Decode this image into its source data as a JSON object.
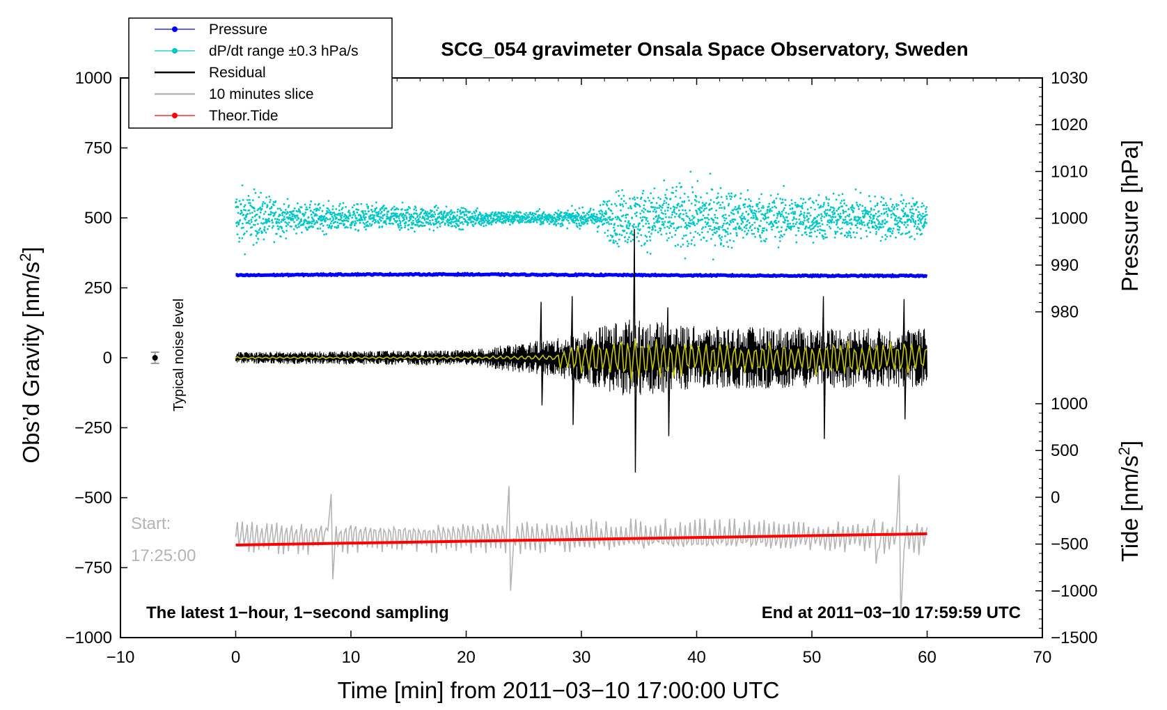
{
  "chart_data": {
    "type": "line",
    "title": "SCG_054 gravimeter Onsala Space Observatory, Sweden",
    "xlabel": "Time [min] from 2011−03−10 17:00:00 UTC",
    "ylabel_left": "Obs’d Gravity [nm/s",
    "ylabel_left_sup": "2",
    "ylabel_left_close": "]",
    "ylabel_right_top": "Pressure [hPa]",
    "ylabel_right_bottom": "Tide [nm/s",
    "ylabel_right_bottom_sup": "2",
    "ylabel_right_bottom_close": "]",
    "xlim": [
      -10,
      70
    ],
    "ylim_left": [
      -1000,
      1000
    ],
    "ylim_pressure": [
      970,
      1030
    ],
    "ylim_tide": [
      -1500,
      1000
    ],
    "x_ticks": [
      "−10",
      "0",
      "10",
      "20",
      "30",
      "40",
      "50",
      "60",
      "70"
    ],
    "x_tick_values": [
      -10,
      0,
      10,
      20,
      30,
      40,
      50,
      60,
      70
    ],
    "left_ticks": [
      "1000",
      "750",
      "500",
      "250",
      "0",
      "−250",
      "−500",
      "−750",
      "−1000"
    ],
    "left_tick_values": [
      1000,
      750,
      500,
      250,
      0,
      -250,
      -500,
      -750,
      -1000
    ],
    "pressure_ticks": [
      "1030",
      "1020",
      "1010",
      "1000",
      "990",
      "980"
    ],
    "pressure_tick_values": [
      1030,
      1020,
      1010,
      1000,
      990,
      980
    ],
    "tide_ticks": [
      "1000",
      "500",
      "0",
      "−500",
      "−1000",
      "−1500"
    ],
    "tide_tick_values": [
      1000,
      500,
      0,
      -500,
      -1000,
      -1500
    ],
    "series": [
      {
        "name": "Pressure",
        "color": "#0000ff",
        "axis": "pressure",
        "x": [
          0,
          10,
          20,
          30,
          40,
          50,
          60
        ],
        "values": [
          987.8,
          988.0,
          988.0,
          987.9,
          987.8,
          987.7,
          987.7
        ]
      },
      {
        "name": "dP/dt range ±0.3 hPa/s",
        "color": "#00c8c8",
        "axis": "left",
        "style": "points",
        "center": 500,
        "spread_by_minute": [
          [
            0,
            200
          ],
          [
            5,
            90
          ],
          [
            15,
            80
          ],
          [
            25,
            40
          ],
          [
            31,
            60
          ],
          [
            33,
            170
          ],
          [
            40,
            220
          ],
          [
            45,
            160
          ],
          [
            60,
            130
          ]
        ]
      },
      {
        "name": "Residual",
        "color": "#000000",
        "axis": "left",
        "amplitude_by_minute": [
          [
            0,
            30
          ],
          [
            20,
            40
          ],
          [
            28,
            100
          ],
          [
            34,
            200
          ],
          [
            40,
            160
          ],
          [
            60,
            150
          ]
        ],
        "spikes": [
          [
            26.5,
            200,
            -170
          ],
          [
            29.2,
            220,
            -240
          ],
          [
            34.6,
            460,
            -410
          ],
          [
            37.5,
            180,
            -280
          ],
          [
            51,
            220,
            -290
          ],
          [
            58,
            210,
            -220
          ]
        ]
      },
      {
        "name": "10 minutes slice",
        "color": "#b4b4b4",
        "axis": "left",
        "offset": -640,
        "start_minute": 0,
        "end_minute": 60
      },
      {
        "name": "Theor.Tide",
        "color": "#ff0000",
        "axis": "tide",
        "x": [
          0,
          60
        ],
        "values": [
          -510,
          -390
        ]
      },
      {
        "name": "10 min smooth",
        "color": "#c8c800",
        "axis": "left"
      }
    ],
    "legend": [
      {
        "label": "Pressure",
        "color": "#0000ff",
        "marker": true
      },
      {
        "label": "dP/dt range ±0.3 hPa/s",
        "color": "#00c8c8",
        "marker": true
      },
      {
        "label": "Residual",
        "color": "#000000",
        "marker": false
      },
      {
        "label": "10 minutes slice",
        "color": "#b4b4b4",
        "marker": false
      },
      {
        "label": "Theor.Tide",
        "color": "#ff0000",
        "marker": true
      }
    ],
    "legend_position": "top-left",
    "noise_label": "Typical noise level",
    "noise_value": 0,
    "noise_error": 20,
    "noise_x": -7,
    "start_label": "Start:",
    "start_time": "17:25:00",
    "bottom_left_note": "The latest 1−hour, 1−second sampling",
    "bottom_right_note": "End at 2011−03−10 17:59:59 UTC"
  }
}
